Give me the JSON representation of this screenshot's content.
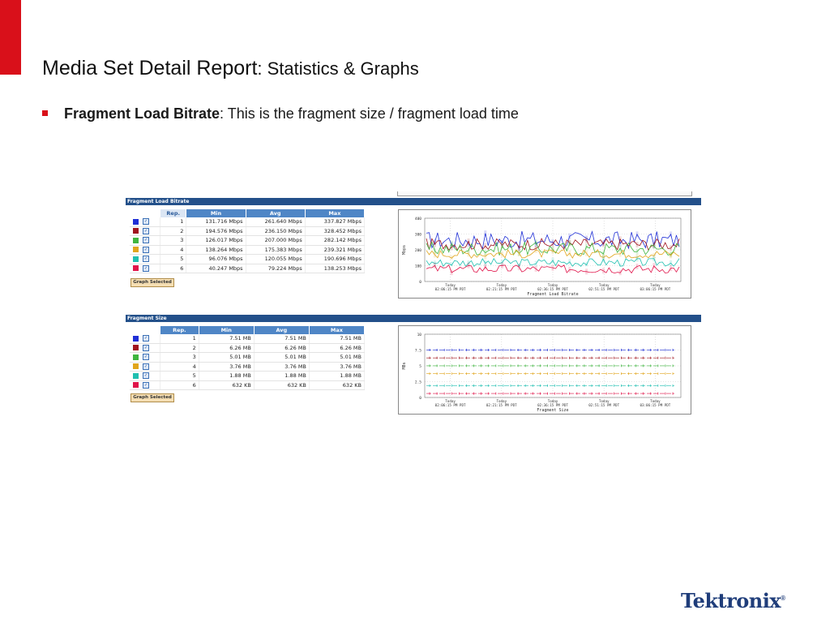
{
  "slide": {
    "title_main": "Media Set Detail Report",
    "title_sub": ": Statistics & Graphs",
    "bullet_bold": "Fragment Load Bitrate",
    "bullet_text": ": This is the fragment size / fragment load time",
    "logo": "Tektronix",
    "logo_mark": "®",
    "accent_color": "#d9101a"
  },
  "panels": [
    {
      "header": "Fragment Load Bitrate",
      "columns": [
        "Rep.",
        "Min",
        "Avg",
        "Max"
      ],
      "rows": [
        {
          "color": "#1f2fd6",
          "rep": "1",
          "min": "131.716 Mbps",
          "avg": "261.640 Mbps",
          "max": "337.827 Mbps"
        },
        {
          "color": "#a0141e",
          "rep": "2",
          "min": "194.576 Mbps",
          "avg": "236.150 Mbps",
          "max": "328.452 Mbps"
        },
        {
          "color": "#3fb53f",
          "rep": "3",
          "min": "126.017 Mbps",
          "avg": "207.000 Mbps",
          "max": "282.142 Mbps"
        },
        {
          "color": "#e0a51c",
          "rep": "4",
          "min": "138.264 Mbps",
          "avg": "175.383 Mbps",
          "max": "239.321 Mbps"
        },
        {
          "color": "#1fbfb0",
          "rep": "5",
          "min": "96.076 Mbps",
          "avg": "120.055 Mbps",
          "max": "190.696 Mbps"
        },
        {
          "color": "#e0144a",
          "rep": "6",
          "min": "40.247 Mbps",
          "avg": "79.224 Mbps",
          "max": "138.253 Mbps"
        }
      ],
      "button": "Graph Selected",
      "chart": {
        "title": "Fragment Load Bitrate",
        "ylabel": "Mbps",
        "yticks": [
          "0",
          "100",
          "200",
          "300",
          "400"
        ],
        "xticks": [
          {
            "day": "Today",
            "time": "02:06:15 PM PDT"
          },
          {
            "day": "Today",
            "time": "02:21:15 PM PDT"
          },
          {
            "day": "Today",
            "time": "02:36:15 PM PDT"
          },
          {
            "day": "Today",
            "time": "02:51:15 PM PDT"
          },
          {
            "day": "Today",
            "time": "03:06:15 PM PDT"
          }
        ]
      }
    },
    {
      "header": "Fragment Size",
      "columns": [
        "Rep.",
        "Min",
        "Avg",
        "Max"
      ],
      "rows": [
        {
          "color": "#1f2fd6",
          "rep": "1",
          "min": "7.51 MB",
          "avg": "7.51 MB",
          "max": "7.51 MB"
        },
        {
          "color": "#a0141e",
          "rep": "2",
          "min": "6.26 MB",
          "avg": "6.26 MB",
          "max": "6.26 MB"
        },
        {
          "color": "#3fb53f",
          "rep": "3",
          "min": "5.01 MB",
          "avg": "5.01 MB",
          "max": "5.01 MB"
        },
        {
          "color": "#e0a51c",
          "rep": "4",
          "min": "3.76 MB",
          "avg": "3.76 MB",
          "max": "3.76 MB"
        },
        {
          "color": "#1fbfb0",
          "rep": "5",
          "min": "1.88 MB",
          "avg": "1.88 MB",
          "max": "1.88 MB"
        },
        {
          "color": "#e0144a",
          "rep": "6",
          "min": "632 KB",
          "avg": "632 KB",
          "max": "632 KB"
        }
      ],
      "button": "Graph Selected",
      "chart": {
        "title": "Fragment Size",
        "ylabel": "MBs",
        "yticks": [
          "0",
          "2.5",
          "5",
          "7.5",
          "10"
        ],
        "xticks": [
          {
            "day": "Today",
            "time": "02:06:15 PM PDT"
          },
          {
            "day": "Today",
            "time": "02:21:15 PM PDT"
          },
          {
            "day": "Today",
            "time": "02:36:15 PM PDT"
          },
          {
            "day": "Today",
            "time": "02:51:15 PM PDT"
          },
          {
            "day": "Today",
            "time": "03:06:15 PM PDT"
          }
        ]
      }
    }
  ]
}
